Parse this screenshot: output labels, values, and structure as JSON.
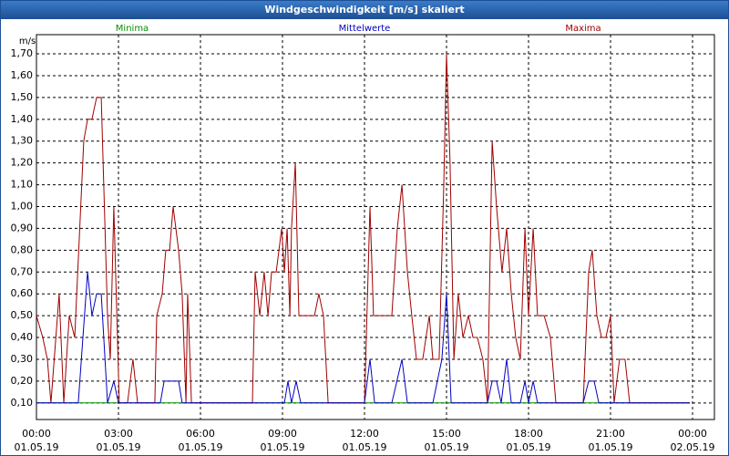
{
  "chart_data": {
    "type": "line",
    "title": "Windgeschwindigkeit [m/s] skaliert",
    "y_label": "m/s",
    "xlim": [
      0,
      24.8
    ],
    "ylim": [
      0.024,
      1.788
    ],
    "grid": true,
    "xticks": [
      {
        "value": 0,
        "label": "00:00"
      },
      {
        "value": 3,
        "label": "03:00"
      },
      {
        "value": 6,
        "label": "06:00"
      },
      {
        "value": 9,
        "label": "09:00"
      },
      {
        "value": 12,
        "label": "12:00"
      },
      {
        "value": 15,
        "label": "15:00"
      },
      {
        "value": 18,
        "label": "18:00"
      },
      {
        "value": 21,
        "label": "21:00"
      },
      {
        "value": 24,
        "label": "00:00"
      }
    ],
    "xtick_dates": [
      "01.05.19",
      "01.05.19",
      "01.05.19",
      "01.05.19",
      "01.05.19",
      "01.05.19",
      "01.05.19",
      "01.05.19",
      "02.05.19"
    ],
    "yticks": [
      {
        "value": 0.1,
        "label": "0,10"
      },
      {
        "value": 0.2,
        "label": "0,20"
      },
      {
        "value": 0.3,
        "label": "0,30"
      },
      {
        "value": 0.4,
        "label": "0,40"
      },
      {
        "value": 0.5,
        "label": "0,50"
      },
      {
        "value": 0.6,
        "label": "0,60"
      },
      {
        "value": 0.7,
        "label": "0,70"
      },
      {
        "value": 0.8,
        "label": "0,80"
      },
      {
        "value": 0.9,
        "label": "0,90"
      },
      {
        "value": 1.0,
        "label": "1,00"
      },
      {
        "value": 1.1,
        "label": "1,10"
      },
      {
        "value": 1.2,
        "label": "1,20"
      },
      {
        "value": 1.3,
        "label": "1,30"
      },
      {
        "value": 1.4,
        "label": "1,40"
      },
      {
        "value": 1.5,
        "label": "1,50"
      },
      {
        "value": 1.6,
        "label": "1,60"
      },
      {
        "value": 1.7,
        "label": "1,70"
      }
    ],
    "series": [
      {
        "name": "Minima",
        "color": "#009000",
        "x": [
          0,
          23.9
        ],
        "values": [
          0.1,
          0.1
        ]
      },
      {
        "name": "Maxima",
        "color": "#a00000",
        "x": [
          0,
          0.23,
          0.4,
          0.53,
          0.83,
          1,
          1.2,
          1.4,
          1.73,
          1.87,
          2.03,
          2.2,
          2.37,
          2.6,
          2.7,
          2.83,
          3.03,
          3.33,
          3.53,
          3.7,
          4.33,
          4.4,
          4.6,
          4.73,
          4.87,
          5,
          5.2,
          5.33,
          5.47,
          5.53,
          5.67,
          7.9,
          8,
          8.17,
          8.33,
          8.47,
          8.6,
          8.77,
          8.97,
          9.07,
          9.17,
          9.27,
          9.33,
          9.47,
          9.6,
          10.17,
          10.33,
          10.5,
          10.67,
          12,
          12.2,
          12.33,
          13,
          13.2,
          13.37,
          13.57,
          13.73,
          13.9,
          14.13,
          14.37,
          14.5,
          14.73,
          14.9,
          15,
          15.13,
          15.27,
          15.43,
          15.6,
          15.8,
          15.97,
          16.13,
          16.33,
          16.5,
          16.67,
          16.83,
          17.03,
          17.2,
          17.37,
          17.53,
          17.7,
          17.87,
          18,
          18.17,
          18.33,
          18.57,
          18.8,
          19,
          20,
          20.2,
          20.33,
          20.5,
          20.67,
          20.83,
          21,
          21.13,
          21.33,
          21.53,
          21.7,
          23.9
        ],
        "values": [
          0.5,
          0.4,
          0.3,
          0.1,
          0.6,
          0.1,
          0.5,
          0.4,
          1.3,
          1.4,
          1.4,
          1.5,
          1.5,
          0.5,
          0.3,
          1.0,
          0.1,
          0.1,
          0.3,
          0.1,
          0.1,
          0.5,
          0.6,
          0.8,
          0.8,
          1.0,
          0.8,
          0.6,
          0.1,
          0.6,
          0.1,
          0.1,
          0.7,
          0.5,
          0.7,
          0.5,
          0.7,
          0.7,
          0.9,
          0.7,
          0.9,
          0.5,
          0.9,
          1.2,
          0.5,
          0.5,
          0.6,
          0.5,
          0.1,
          0.1,
          1.0,
          0.5,
          0.5,
          0.9,
          1.1,
          0.7,
          0.5,
          0.3,
          0.3,
          0.5,
          0.3,
          0.3,
          1.1,
          1.7,
          1.2,
          0.3,
          0.6,
          0.4,
          0.5,
          0.4,
          0.4,
          0.3,
          0.1,
          1.3,
          1.0,
          0.7,
          0.9,
          0.6,
          0.4,
          0.3,
          0.9,
          0.5,
          0.9,
          0.5,
          0.5,
          0.4,
          0.1,
          0.1,
          0.7,
          0.8,
          0.5,
          0.4,
          0.4,
          0.5,
          0.1,
          0.3,
          0.3,
          0.1,
          0.1
        ]
      },
      {
        "name": "Mittelwerte",
        "color": "#0000c0",
        "x": [
          0,
          1.53,
          1.87,
          2.03,
          2.2,
          2.37,
          2.6,
          2.83,
          3,
          4.53,
          4.67,
          5.2,
          5.33,
          9.07,
          9.2,
          9.33,
          9.5,
          9.67,
          12,
          12.2,
          12.37,
          13,
          13.37,
          13.57,
          14.5,
          14.83,
          15,
          15.17,
          16.5,
          16.67,
          16.83,
          17,
          17.2,
          17.37,
          17.7,
          17.87,
          18,
          18.17,
          18.33,
          20,
          20.2,
          20.4,
          20.57,
          23.9
        ],
        "values": [
          0.1,
          0.1,
          0.7,
          0.5,
          0.6,
          0.6,
          0.1,
          0.2,
          0.1,
          0.1,
          0.2,
          0.2,
          0.1,
          0.1,
          0.2,
          0.1,
          0.2,
          0.1,
          0.1,
          0.3,
          0.1,
          0.1,
          0.3,
          0.1,
          0.1,
          0.3,
          0.6,
          0.1,
          0.1,
          0.2,
          0.2,
          0.1,
          0.3,
          0.1,
          0.1,
          0.2,
          0.1,
          0.2,
          0.1,
          0.1,
          0.2,
          0.2,
          0.1,
          0.1
        ]
      }
    ]
  }
}
